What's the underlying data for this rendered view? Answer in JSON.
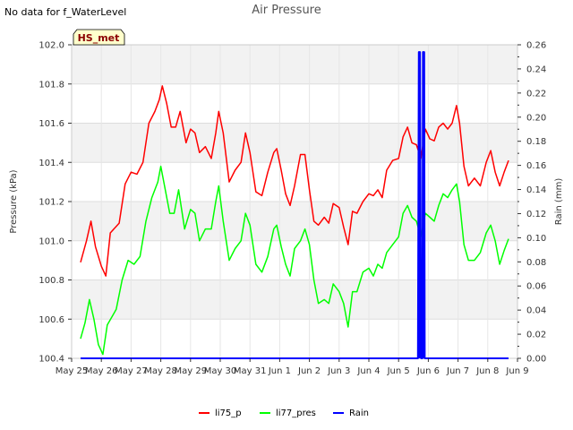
{
  "corner_note": "No data for f_WaterLevel",
  "station_badge": "HS_met",
  "chart_data": {
    "type": "line",
    "title": "Air Pressure",
    "ylabel": "Pressure (kPa)",
    "y2label": "Rain (mm)",
    "xlabel": "",
    "x_ticks": [
      "May 25",
      "May 26",
      "May 27",
      "May 28",
      "May 29",
      "May 30",
      "May 31",
      "Jun 1",
      "Jun 2",
      "Jun 3",
      "Jun 4",
      "Jun 5",
      "Jun 6",
      "Jun 7",
      "Jun 8",
      "Jun 9"
    ],
    "x_range_days": [
      0,
      15
    ],
    "ylim": [
      100.4,
      102.0
    ],
    "yticks": [
      "100.4",
      "100.6",
      "100.8",
      "101.0",
      "101.2",
      "101.4",
      "101.6",
      "101.8",
      "102.0"
    ],
    "y2lim": [
      0.0,
      0.26
    ],
    "y2ticks": [
      "0.00",
      "0.02",
      "0.04",
      "0.06",
      "0.08",
      "0.10",
      "0.12",
      "0.14",
      "0.16",
      "0.18",
      "0.20",
      "0.22",
      "0.24",
      "0.26"
    ],
    "grid": true,
    "legend_position": "bottom-center",
    "series": [
      {
        "name": "li75_p",
        "color": "#ff0000",
        "axis": "left",
        "points": [
          [
            0.3,
            100.89
          ],
          [
            0.5,
            101.0
          ],
          [
            0.65,
            101.1
          ],
          [
            0.8,
            100.97
          ],
          [
            1.0,
            100.87
          ],
          [
            1.15,
            100.82
          ],
          [
            1.3,
            101.04
          ],
          [
            1.6,
            101.09
          ],
          [
            1.8,
            101.29
          ],
          [
            2.0,
            101.35
          ],
          [
            2.2,
            101.34
          ],
          [
            2.4,
            101.4
          ],
          [
            2.6,
            101.6
          ],
          [
            2.8,
            101.66
          ],
          [
            2.95,
            101.72
          ],
          [
            3.05,
            101.79
          ],
          [
            3.2,
            101.7
          ],
          [
            3.35,
            101.58
          ],
          [
            3.5,
            101.58
          ],
          [
            3.65,
            101.66
          ],
          [
            3.85,
            101.5
          ],
          [
            4.0,
            101.57
          ],
          [
            4.15,
            101.55
          ],
          [
            4.3,
            101.45
          ],
          [
            4.5,
            101.48
          ],
          [
            4.7,
            101.42
          ],
          [
            4.85,
            101.55
          ],
          [
            4.95,
            101.66
          ],
          [
            5.1,
            101.55
          ],
          [
            5.3,
            101.3
          ],
          [
            5.5,
            101.36
          ],
          [
            5.7,
            101.4
          ],
          [
            5.85,
            101.55
          ],
          [
            6.0,
            101.45
          ],
          [
            6.2,
            101.25
          ],
          [
            6.4,
            101.23
          ],
          [
            6.6,
            101.35
          ],
          [
            6.8,
            101.45
          ],
          [
            6.9,
            101.47
          ],
          [
            7.05,
            101.36
          ],
          [
            7.2,
            101.24
          ],
          [
            7.35,
            101.18
          ],
          [
            7.5,
            101.28
          ],
          [
            7.7,
            101.44
          ],
          [
            7.85,
            101.44
          ],
          [
            8.0,
            101.26
          ],
          [
            8.15,
            101.1
          ],
          [
            8.3,
            101.08
          ],
          [
            8.5,
            101.12
          ],
          [
            8.65,
            101.09
          ],
          [
            8.8,
            101.19
          ],
          [
            9.0,
            101.17
          ],
          [
            9.15,
            101.07
          ],
          [
            9.3,
            100.98
          ],
          [
            9.45,
            101.15
          ],
          [
            9.6,
            101.14
          ],
          [
            9.8,
            101.2
          ],
          [
            10.0,
            101.24
          ],
          [
            10.15,
            101.23
          ],
          [
            10.3,
            101.26
          ],
          [
            10.45,
            101.22
          ],
          [
            10.6,
            101.36
          ],
          [
            10.8,
            101.41
          ],
          [
            11.0,
            101.42
          ],
          [
            11.15,
            101.53
          ],
          [
            11.3,
            101.58
          ],
          [
            11.45,
            101.5
          ],
          [
            11.6,
            101.49
          ],
          [
            11.75,
            101.42
          ],
          [
            11.9,
            101.57
          ],
          [
            12.05,
            101.52
          ],
          [
            12.2,
            101.51
          ],
          [
            12.35,
            101.58
          ],
          [
            12.5,
            101.6
          ],
          [
            12.65,
            101.57
          ],
          [
            12.8,
            101.6
          ],
          [
            12.95,
            101.69
          ],
          [
            13.05,
            101.6
          ],
          [
            13.2,
            101.38
          ],
          [
            13.35,
            101.28
          ],
          [
            13.55,
            101.32
          ],
          [
            13.75,
            101.28
          ],
          [
            13.95,
            101.4
          ],
          [
            14.1,
            101.46
          ],
          [
            14.25,
            101.35
          ],
          [
            14.4,
            101.28
          ],
          [
            14.55,
            101.35
          ],
          [
            14.7,
            101.41
          ]
        ]
      },
      {
        "name": "li77_pres",
        "color": "#00ff00",
        "axis": "left",
        "points": [
          [
            0.3,
            100.5
          ],
          [
            0.45,
            100.58
          ],
          [
            0.6,
            100.7
          ],
          [
            0.75,
            100.6
          ],
          [
            0.9,
            100.47
          ],
          [
            1.05,
            100.42
          ],
          [
            1.2,
            100.57
          ],
          [
            1.5,
            100.65
          ],
          [
            1.7,
            100.8
          ],
          [
            1.9,
            100.9
          ],
          [
            2.1,
            100.88
          ],
          [
            2.3,
            100.92
          ],
          [
            2.5,
            101.1
          ],
          [
            2.7,
            101.22
          ],
          [
            2.9,
            101.3
          ],
          [
            3.0,
            101.38
          ],
          [
            3.15,
            101.26
          ],
          [
            3.3,
            101.14
          ],
          [
            3.45,
            101.14
          ],
          [
            3.6,
            101.26
          ],
          [
            3.8,
            101.06
          ],
          [
            4.0,
            101.16
          ],
          [
            4.15,
            101.14
          ],
          [
            4.3,
            101.0
          ],
          [
            4.5,
            101.06
          ],
          [
            4.7,
            101.06
          ],
          [
            4.85,
            101.2
          ],
          [
            4.95,
            101.28
          ],
          [
            5.1,
            101.1
          ],
          [
            5.3,
            100.9
          ],
          [
            5.5,
            100.96
          ],
          [
            5.7,
            101.0
          ],
          [
            5.85,
            101.14
          ],
          [
            6.0,
            101.08
          ],
          [
            6.2,
            100.88
          ],
          [
            6.4,
            100.84
          ],
          [
            6.6,
            100.92
          ],
          [
            6.8,
            101.06
          ],
          [
            6.9,
            101.08
          ],
          [
            7.05,
            100.97
          ],
          [
            7.2,
            100.88
          ],
          [
            7.35,
            100.82
          ],
          [
            7.5,
            100.96
          ],
          [
            7.7,
            101.0
          ],
          [
            7.85,
            101.06
          ],
          [
            8.0,
            100.98
          ],
          [
            8.15,
            100.8
          ],
          [
            8.3,
            100.68
          ],
          [
            8.5,
            100.7
          ],
          [
            8.65,
            100.68
          ],
          [
            8.8,
            100.78
          ],
          [
            9.0,
            100.74
          ],
          [
            9.15,
            100.68
          ],
          [
            9.3,
            100.56
          ],
          [
            9.45,
            100.74
          ],
          [
            9.6,
            100.74
          ],
          [
            9.8,
            100.84
          ],
          [
            10.0,
            100.86
          ],
          [
            10.15,
            100.82
          ],
          [
            10.3,
            100.88
          ],
          [
            10.45,
            100.86
          ],
          [
            10.6,
            100.94
          ],
          [
            10.8,
            100.98
          ],
          [
            11.0,
            101.02
          ],
          [
            11.15,
            101.14
          ],
          [
            11.3,
            101.18
          ],
          [
            11.45,
            101.12
          ],
          [
            11.6,
            101.1
          ],
          [
            11.75,
            101.02
          ],
          [
            11.9,
            101.14
          ],
          [
            12.05,
            101.12
          ],
          [
            12.2,
            101.1
          ],
          [
            12.35,
            101.18
          ],
          [
            12.5,
            101.24
          ],
          [
            12.65,
            101.22
          ],
          [
            12.8,
            101.26
          ],
          [
            12.95,
            101.29
          ],
          [
            13.05,
            101.2
          ],
          [
            13.2,
            100.98
          ],
          [
            13.35,
            100.9
          ],
          [
            13.55,
            100.9
          ],
          [
            13.75,
            100.94
          ],
          [
            13.95,
            101.04
          ],
          [
            14.1,
            101.08
          ],
          [
            14.25,
            101.0
          ],
          [
            14.4,
            100.88
          ],
          [
            14.55,
            100.95
          ],
          [
            14.7,
            101.01
          ]
        ]
      },
      {
        "name": "Rain",
        "color": "#0000ff",
        "axis": "right",
        "points": [
          [
            0.3,
            0.0
          ],
          [
            11.65,
            0.0
          ],
          [
            11.68,
            0.254
          ],
          [
            11.72,
            0.254
          ],
          [
            11.76,
            0.0
          ],
          [
            11.8,
            0.0
          ],
          [
            11.82,
            0.254
          ],
          [
            11.86,
            0.254
          ],
          [
            11.88,
            0.0
          ],
          [
            14.7,
            0.0
          ]
        ]
      }
    ]
  }
}
